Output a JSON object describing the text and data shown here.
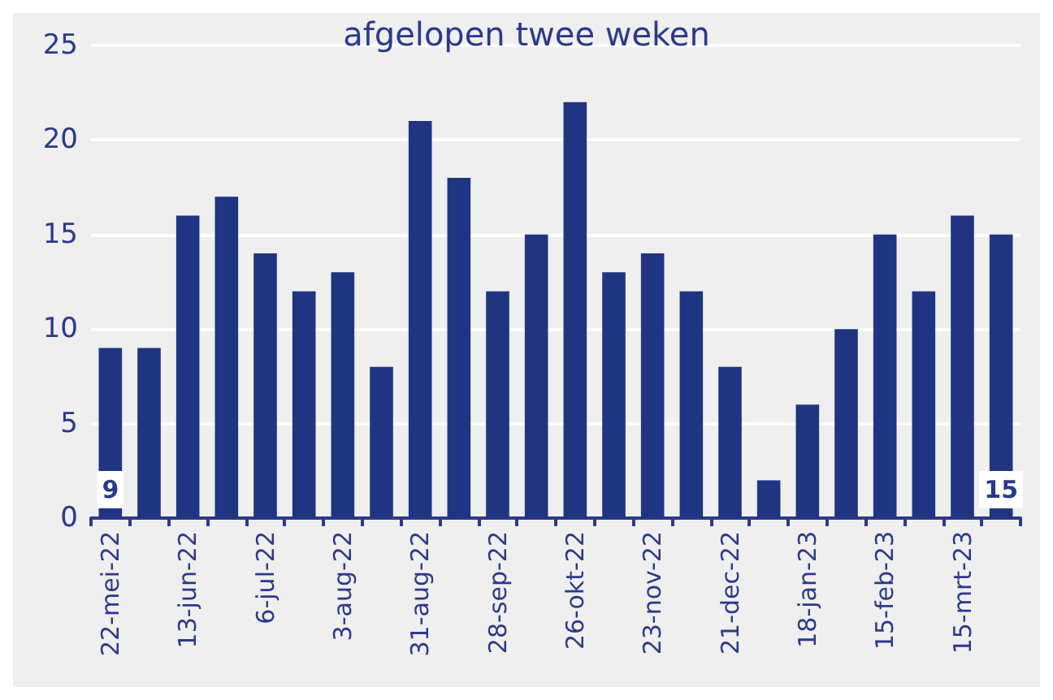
{
  "chart_data": {
    "type": "bar",
    "title": "afgelopen twee weken",
    "categories": [
      "22-mei-22",
      null,
      "13-jun-22",
      null,
      "6-jul-22",
      null,
      "3-aug-22",
      null,
      "31-aug-22",
      null,
      "28-sep-22",
      null,
      "26-okt-22",
      null,
      "23-nov-22",
      null,
      "21-dec-22",
      null,
      "18-jan-23",
      null,
      "15-feb-23",
      null,
      "15-mrt-23",
      null
    ],
    "values": [
      9,
      9,
      16,
      17,
      14,
      12,
      13,
      8,
      21,
      18,
      12,
      15,
      22,
      13,
      14,
      12,
      8,
      2,
      6,
      10,
      15,
      12,
      16,
      15
    ],
    "value_labels": [
      "9",
      null,
      null,
      null,
      null,
      null,
      null,
      null,
      null,
      null,
      null,
      null,
      null,
      null,
      null,
      null,
      null,
      null,
      null,
      null,
      null,
      null,
      null,
      "15"
    ],
    "color": "#1f3582",
    "ylim": [
      0,
      25
    ],
    "yticks": [
      0,
      5,
      10,
      15,
      20,
      25
    ],
    "grid": "y"
  }
}
